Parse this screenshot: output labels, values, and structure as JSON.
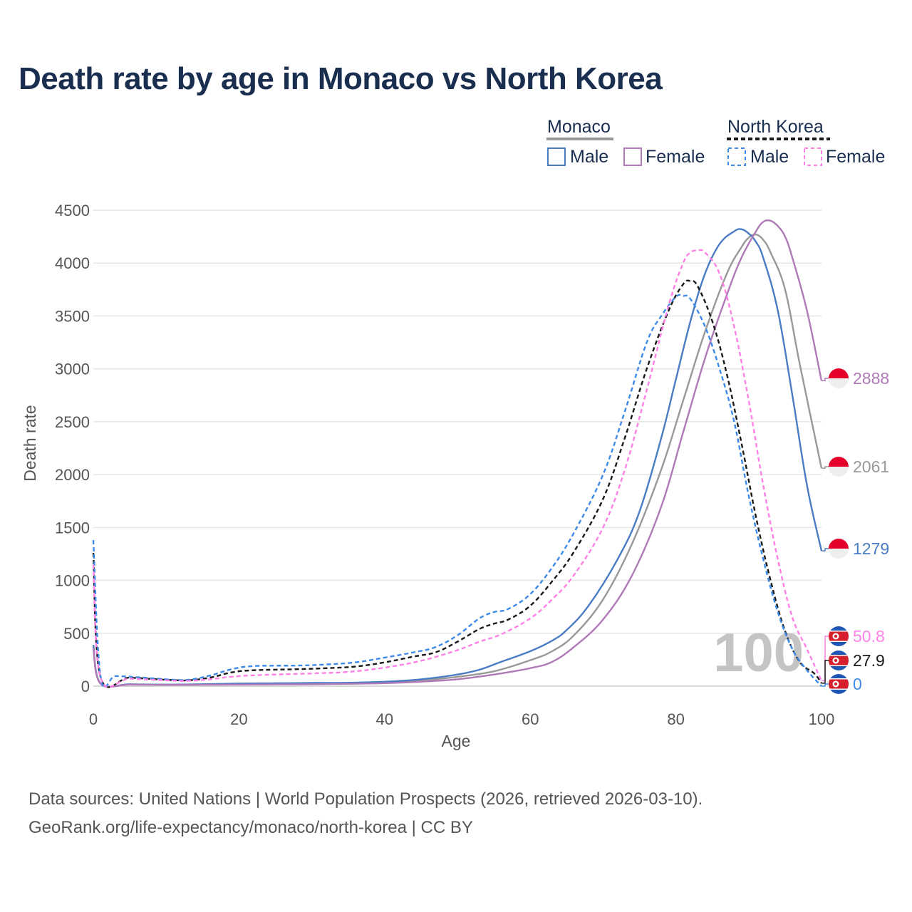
{
  "title": "Death rate by age in Monaco vs North Korea",
  "footer": {
    "line1": "Data sources: United Nations | World Population Prospects (2026, retrieved 2026-03-10).",
    "line2": "GeoRank.org/life-expectancy/monaco/north-korea | CC BY"
  },
  "legend": {
    "group1": "Monaco",
    "group2": "North Korea",
    "male": "Male",
    "female": "Female"
  },
  "watermark": "100",
  "colors": {
    "monaco_male": "#4a7cc4",
    "monaco_female": "#b07ab8",
    "monaco_total": "#999999",
    "nk_male": "#3d8ae8",
    "nk_female": "#ff80e6",
    "nk_total": "#1a1a1a",
    "title": "#1a2e4f"
  },
  "chart_data": {
    "type": "line",
    "xlabel": "Age",
    "ylabel": "Death rate",
    "xlim": [
      0,
      100
    ],
    "ylim": [
      0,
      4500
    ],
    "xticks": [
      0,
      20,
      40,
      60,
      80,
      100
    ],
    "yticks": [
      0,
      500,
      1000,
      1500,
      2000,
      2500,
      3000,
      3500,
      4000,
      4500
    ],
    "series": [
      {
        "name": "Monaco Male",
        "style": "solid",
        "color": "#4a7cc4",
        "end_label": "1279",
        "points": [
          [
            0,
            390
          ],
          [
            1,
            25
          ],
          [
            5,
            18
          ],
          [
            10,
            15
          ],
          [
            15,
            18
          ],
          [
            20,
            25
          ],
          [
            25,
            27
          ],
          [
            30,
            30
          ],
          [
            35,
            32
          ],
          [
            40,
            42
          ],
          [
            45,
            65
          ],
          [
            50,
            110
          ],
          [
            53,
            155
          ],
          [
            56,
            230
          ],
          [
            60,
            330
          ],
          [
            63,
            430
          ],
          [
            65,
            530
          ],
          [
            68,
            760
          ],
          [
            72,
            1200
          ],
          [
            75,
            1650
          ],
          [
            78,
            2350
          ],
          [
            80,
            2900
          ],
          [
            82,
            3450
          ],
          [
            84,
            3900
          ],
          [
            86,
            4180
          ],
          [
            88,
            4300
          ],
          [
            89,
            4320
          ],
          [
            90,
            4280
          ],
          [
            91,
            4200
          ],
          [
            92,
            4050
          ],
          [
            94,
            3550
          ],
          [
            96,
            2750
          ],
          [
            98,
            1900
          ],
          [
            100,
            1279
          ]
        ]
      },
      {
        "name": "Monaco Female",
        "style": "solid",
        "color": "#b07ab8",
        "end_label": "2888",
        "points": [
          [
            0,
            360
          ],
          [
            1,
            22
          ],
          [
            5,
            15
          ],
          [
            10,
            12
          ],
          [
            15,
            13
          ],
          [
            20,
            15
          ],
          [
            25,
            16
          ],
          [
            30,
            18
          ],
          [
            35,
            22
          ],
          [
            40,
            28
          ],
          [
            45,
            42
          ],
          [
            50,
            65
          ],
          [
            55,
            110
          ],
          [
            60,
            170
          ],
          [
            63,
            230
          ],
          [
            66,
            370
          ],
          [
            70,
            630
          ],
          [
            74,
            1050
          ],
          [
            78,
            1700
          ],
          [
            81,
            2400
          ],
          [
            84,
            3100
          ],
          [
            87,
            3700
          ],
          [
            89,
            4050
          ],
          [
            91,
            4300
          ],
          [
            92,
            4390
          ],
          [
            93,
            4400
          ],
          [
            94,
            4350
          ],
          [
            95,
            4250
          ],
          [
            96,
            4050
          ],
          [
            98,
            3550
          ],
          [
            100,
            2888
          ]
        ]
      },
      {
        "name": "Monaco Total",
        "style": "solid",
        "color": "#999999",
        "end_label": "2061",
        "points": [
          [
            0,
            375
          ],
          [
            1,
            24
          ],
          [
            5,
            16
          ],
          [
            10,
            14
          ],
          [
            15,
            16
          ],
          [
            20,
            20
          ],
          [
            25,
            22
          ],
          [
            30,
            24
          ],
          [
            35,
            27
          ],
          [
            40,
            35
          ],
          [
            45,
            53
          ],
          [
            50,
            88
          ],
          [
            55,
            140
          ],
          [
            60,
            245
          ],
          [
            63,
            330
          ],
          [
            66,
            480
          ],
          [
            70,
            820
          ],
          [
            74,
            1350
          ],
          [
            78,
            2050
          ],
          [
            81,
            2700
          ],
          [
            84,
            3350
          ],
          [
            87,
            3900
          ],
          [
            89,
            4150
          ],
          [
            90,
            4240
          ],
          [
            91,
            4270
          ],
          [
            92,
            4220
          ],
          [
            93,
            4100
          ],
          [
            95,
            3750
          ],
          [
            97,
            3050
          ],
          [
            100,
            2061
          ]
        ]
      },
      {
        "name": "North Korea Male",
        "style": "dash",
        "color": "#3d8ae8",
        "end_label": "0",
        "points": [
          [
            0,
            1380
          ],
          [
            1,
            90
          ],
          [
            3,
            95
          ],
          [
            6,
            85
          ],
          [
            10,
            65
          ],
          [
            13,
            60
          ],
          [
            16,
            100
          ],
          [
            19,
            160
          ],
          [
            22,
            190
          ],
          [
            28,
            195
          ],
          [
            32,
            205
          ],
          [
            36,
            225
          ],
          [
            40,
            270
          ],
          [
            44,
            320
          ],
          [
            47,
            370
          ],
          [
            50,
            480
          ],
          [
            53,
            640
          ],
          [
            55,
            700
          ],
          [
            57,
            730
          ],
          [
            60,
            870
          ],
          [
            63,
            1120
          ],
          [
            66,
            1450
          ],
          [
            70,
            2000
          ],
          [
            73,
            2600
          ],
          [
            76,
            3250
          ],
          [
            78,
            3500
          ],
          [
            80,
            3680
          ],
          [
            81,
            3690
          ],
          [
            82,
            3660
          ],
          [
            84,
            3400
          ],
          [
            86,
            3000
          ],
          [
            88,
            2500
          ],
          [
            90,
            1800
          ],
          [
            92,
            1200
          ],
          [
            94,
            700
          ],
          [
            96,
            350
          ],
          [
            98,
            150
          ],
          [
            100,
            0
          ]
        ]
      },
      {
        "name": "North Korea Female",
        "style": "dash",
        "color": "#ff80e6",
        "end_label": "50.8",
        "points": [
          [
            0,
            1150
          ],
          [
            1,
            80
          ],
          [
            5,
            70
          ],
          [
            10,
            55
          ],
          [
            13,
            50
          ],
          [
            16,
            65
          ],
          [
            20,
            95
          ],
          [
            25,
            110
          ],
          [
            30,
            120
          ],
          [
            35,
            135
          ],
          [
            40,
            175
          ],
          [
            45,
            240
          ],
          [
            50,
            340
          ],
          [
            53,
            420
          ],
          [
            56,
            490
          ],
          [
            60,
            640
          ],
          [
            63,
            820
          ],
          [
            66,
            1050
          ],
          [
            70,
            1500
          ],
          [
            73,
            2050
          ],
          [
            76,
            2800
          ],
          [
            79,
            3600
          ],
          [
            81,
            4000
          ],
          [
            82,
            4100
          ],
          [
            83,
            4120
          ],
          [
            84,
            4100
          ],
          [
            86,
            3900
          ],
          [
            88,
            3400
          ],
          [
            90,
            2700
          ],
          [
            92,
            1900
          ],
          [
            94,
            1200
          ],
          [
            96,
            650
          ],
          [
            98,
            350
          ],
          [
            100,
            50.8
          ]
        ]
      },
      {
        "name": "North Korea Total",
        "style": "dash",
        "color": "#1a1a1a",
        "end_label": "27.9",
        "points": [
          [
            0,
            1260
          ],
          [
            1,
            85
          ],
          [
            5,
            80
          ],
          [
            10,
            60
          ],
          [
            13,
            55
          ],
          [
            16,
            80
          ],
          [
            19,
            130
          ],
          [
            22,
            150
          ],
          [
            28,
            160
          ],
          [
            32,
            170
          ],
          [
            36,
            185
          ],
          [
            40,
            225
          ],
          [
            44,
            280
          ],
          [
            47,
            320
          ],
          [
            50,
            420
          ],
          [
            53,
            540
          ],
          [
            55,
            590
          ],
          [
            57,
            630
          ],
          [
            60,
            760
          ],
          [
            63,
            990
          ],
          [
            66,
            1270
          ],
          [
            70,
            1770
          ],
          [
            73,
            2350
          ],
          [
            76,
            3000
          ],
          [
            79,
            3550
          ],
          [
            81,
            3800
          ],
          [
            82,
            3830
          ],
          [
            83,
            3780
          ],
          [
            85,
            3450
          ],
          [
            87,
            2950
          ],
          [
            89,
            2300
          ],
          [
            91,
            1600
          ],
          [
            93,
            1000
          ],
          [
            95,
            520
          ],
          [
            97,
            230
          ],
          [
            99,
            120
          ],
          [
            100,
            27.9
          ]
        ]
      }
    ]
  }
}
